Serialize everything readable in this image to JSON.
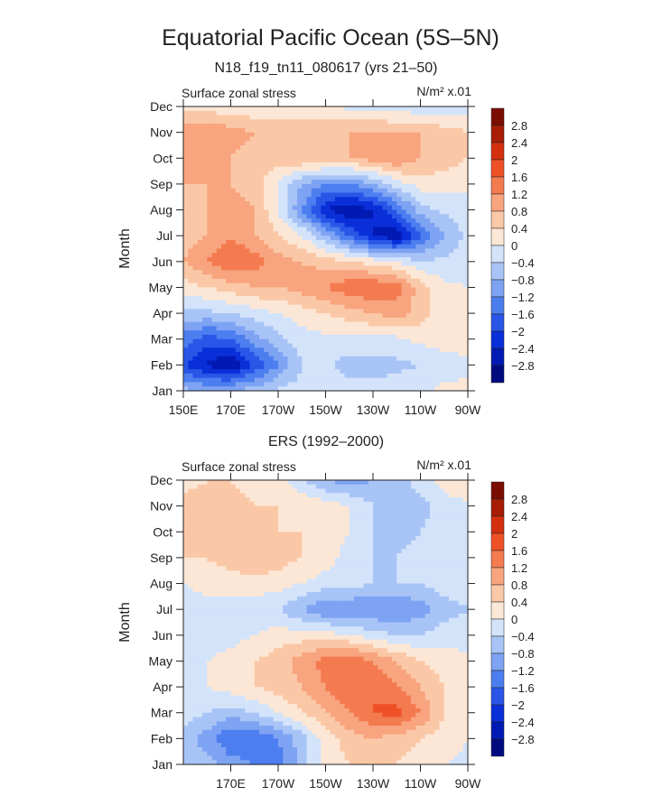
{
  "figure": {
    "title": "Equatorial Pacific Ocean (5S–5N)"
  },
  "palette": {
    "levels": [
      -2.8,
      -2.4,
      -2.0,
      -1.6,
      -1.2,
      -0.8,
      -0.4,
      0,
      0.4,
      0.8,
      1.2,
      1.6,
      2.0,
      2.4,
      2.8
    ],
    "colors": [
      "#000a80",
      "#001ab3",
      "#0a2fd9",
      "#2a56e8",
      "#4d7ef0",
      "#7ea3f3",
      "#a8c4f7",
      "#d3e3fa",
      "#fce7d6",
      "#fbc8a7",
      "#f8a47e",
      "#f47a50",
      "#ef5127",
      "#d4300f",
      "#a71d06",
      "#7a0d00"
    ]
  },
  "chart_data": [
    {
      "type": "heatmap",
      "title": "N18_f19_tn11_080617 (yrs 21–50)",
      "left_label": "Surface zonal stress",
      "units": "N/m² x.01",
      "ylabel": "Month",
      "x_ticks": [
        "150E",
        "170E",
        "170W",
        "150W",
        "130W",
        "110W",
        "90W"
      ],
      "x_tick_values": [
        150,
        170,
        190,
        210,
        230,
        250,
        270
      ],
      "xlim": [
        150,
        270
      ],
      "y_ticks": [
        "Jan",
        "Feb",
        "Mar",
        "Apr",
        "May",
        "Jun",
        "Jul",
        "Aug",
        "Sep",
        "Oct",
        "Nov",
        "Dec"
      ],
      "colorbar_labels": [
        "2.8",
        "2.4",
        "2",
        "1.6",
        "1.2",
        "0.8",
        "0.4",
        "0",
        "−0.4",
        "−0.8",
        "−1.2",
        "−1.6",
        "−2",
        "−2.4",
        "−2.8"
      ],
      "x": [
        150,
        160,
        170,
        180,
        190,
        200,
        210,
        220,
        230,
        240,
        250,
        260,
        270
      ],
      "z": [
        [
          -0.6,
          -0.9,
          -0.8,
          -0.6,
          -0.3,
          -0.2,
          -0.2,
          -0.2,
          -0.2,
          -0.2,
          -0.1,
          0.1,
          0.1
        ],
        [
          -2.0,
          -2.5,
          -2.8,
          -2.0,
          -1.2,
          -0.4,
          -0.3,
          -0.6,
          -0.6,
          -0.5,
          -0.4,
          -0.2,
          -0.1
        ],
        [
          -1.4,
          -1.8,
          -1.6,
          -1.0,
          -0.5,
          -0.2,
          -0.1,
          -0.1,
          -0.1,
          -0.1,
          0.1,
          0.2,
          0.2
        ],
        [
          -0.5,
          -0.5,
          -0.4,
          -0.2,
          0.0,
          0.2,
          0.4,
          0.6,
          0.8,
          1.0,
          0.6,
          0.2,
          0.1
        ],
        [
          0.2,
          0.4,
          0.6,
          0.8,
          0.8,
          1.0,
          1.2,
          1.5,
          1.6,
          1.4,
          0.6,
          0.1,
          0.0
        ],
        [
          0.8,
          1.2,
          1.6,
          1.4,
          1.0,
          0.8,
          0.6,
          0.4,
          0.2,
          0.0,
          -0.4,
          -0.3,
          -0.2
        ],
        [
          0.6,
          0.8,
          1.2,
          0.8,
          0.4,
          0.0,
          -0.8,
          -1.6,
          -2.4,
          -2.8,
          -1.6,
          -0.8,
          -0.3
        ],
        [
          0.6,
          0.8,
          1.0,
          0.8,
          0.0,
          -1.2,
          -2.4,
          -2.8,
          -2.4,
          -1.6,
          -0.6,
          -0.3,
          -0.2
        ],
        [
          0.8,
          0.8,
          0.8,
          0.6,
          0.0,
          -0.8,
          -1.2,
          -1.2,
          -0.8,
          -0.2,
          0.2,
          0.2,
          0.1
        ],
        [
          1.0,
          1.0,
          0.8,
          0.6,
          0.6,
          0.8,
          0.8,
          0.8,
          1.0,
          1.2,
          0.8,
          0.6,
          0.4
        ],
        [
          1.0,
          1.2,
          1.0,
          0.8,
          0.8,
          0.8,
          0.8,
          0.8,
          0.8,
          0.8,
          0.8,
          0.6,
          0.4
        ],
        [
          0.3,
          0.2,
          0.1,
          0.1,
          0.1,
          0.1,
          0.0,
          -0.1,
          -0.1,
          -0.2,
          -0.3,
          -0.3,
          -0.2
        ]
      ]
    },
    {
      "type": "heatmap",
      "title": "ERS (1992–2000)",
      "left_label": "Surface zonal stress",
      "units": "N/m² x.01",
      "ylabel": "Month",
      "x_ticks": [
        "170E",
        "170W",
        "150W",
        "130W",
        "110W",
        "90W"
      ],
      "x_tick_values": [
        170,
        190,
        210,
        230,
        250,
        270
      ],
      "xlim": [
        150,
        270
      ],
      "y_ticks": [
        "Jan",
        "Feb",
        "Mar",
        "Apr",
        "May",
        "Jun",
        "Jul",
        "Aug",
        "Sep",
        "Oct",
        "Nov",
        "Dec"
      ],
      "colorbar_labels": [
        "2.8",
        "2.4",
        "2",
        "1.6",
        "1.2",
        "0.8",
        "0.4",
        "0",
        "−0.4",
        "−0.8",
        "−1.2",
        "−1.6",
        "−2",
        "−2.4",
        "−2.8"
      ],
      "x": [
        150,
        160,
        170,
        180,
        190,
        200,
        210,
        220,
        230,
        240,
        250,
        260,
        270
      ],
      "z": [
        [
          -0.8,
          -0.6,
          -1.0,
          -1.2,
          -1.4,
          -0.6,
          0.2,
          0.4,
          0.6,
          0.4,
          0.2,
          0.0,
          -0.1
        ],
        [
          -0.6,
          -1.0,
          -1.6,
          -1.6,
          -1.2,
          -0.6,
          0.2,
          0.6,
          0.8,
          0.6,
          0.4,
          0.2,
          0.0
        ],
        [
          -0.2,
          -0.4,
          -0.6,
          -0.4,
          0.0,
          0.4,
          0.8,
          1.2,
          1.6,
          1.8,
          1.2,
          0.4,
          0.2
        ],
        [
          0.0,
          0.0,
          0.2,
          0.4,
          0.6,
          0.8,
          1.2,
          1.6,
          1.6,
          1.2,
          0.8,
          0.4,
          0.2
        ],
        [
          -0.2,
          0.0,
          0.2,
          0.4,
          0.6,
          1.0,
          1.4,
          1.6,
          1.2,
          0.8,
          0.4,
          0.2,
          0.1
        ],
        [
          -0.4,
          -0.3,
          -0.2,
          0.0,
          0.2,
          0.2,
          0.2,
          0.0,
          -0.2,
          -0.4,
          -0.4,
          -0.2,
          -0.2
        ],
        [
          -0.3,
          -0.2,
          -0.2,
          -0.2,
          -0.4,
          -0.8,
          -1.2,
          -1.2,
          -1.2,
          -1.2,
          -1.0,
          -0.6,
          -0.4
        ],
        [
          0.0,
          0.2,
          0.2,
          0.2,
          0.2,
          0.0,
          -0.2,
          -0.2,
          -0.4,
          -0.4,
          -0.4,
          -0.2,
          -0.2
        ],
        [
          0.4,
          0.4,
          0.6,
          0.8,
          0.6,
          0.4,
          0.2,
          -0.2,
          -0.4,
          -0.4,
          -0.2,
          -0.2,
          -0.1
        ],
        [
          0.4,
          0.6,
          0.6,
          0.6,
          0.4,
          0.4,
          0.2,
          0.0,
          -0.4,
          -0.6,
          -0.4,
          -0.2,
          -0.1
        ],
        [
          0.6,
          0.6,
          0.6,
          0.4,
          0.4,
          0.4,
          0.2,
          0.0,
          -0.4,
          -0.6,
          -0.6,
          -0.2,
          -0.1
        ],
        [
          0.2,
          0.4,
          0.4,
          0.2,
          0.2,
          -0.4,
          -0.8,
          -1.0,
          -0.8,
          -0.6,
          -0.2,
          0.2,
          0.4
        ]
      ]
    }
  ]
}
